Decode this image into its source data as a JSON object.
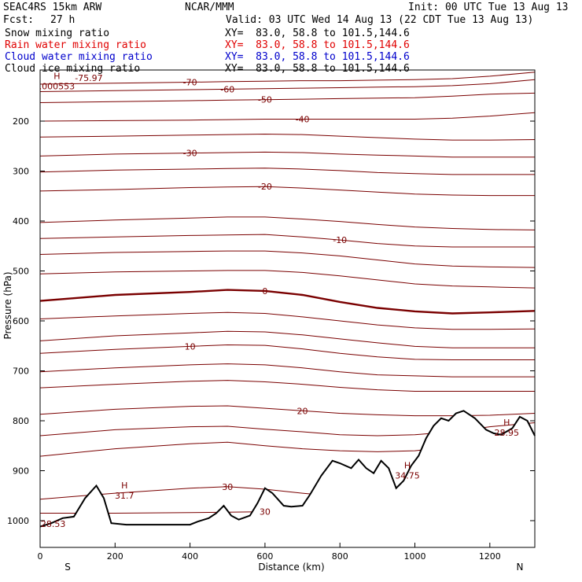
{
  "header": {
    "model": "SEAC4RS 15km ARW",
    "org": "NCAR/MMM",
    "init": "Init: 00 UTC Tue 13 Aug 13",
    "fcst_label": "Fcst:",
    "fcst_value": "27 h",
    "valid": "Valid: 03 UTC Wed 14 Aug 13 (22 CDT Tue 13 Aug 13)"
  },
  "fields": [
    {
      "name": "Snow mixing ratio",
      "xy": "XY=  83.0, 58.8 to 101.5,144.6",
      "color": "#000000"
    },
    {
      "name": "Rain water mixing ratio",
      "xy": "XY=  83.0, 58.8 to 101.5,144.6",
      "color": "#e00000"
    },
    {
      "name": "Cloud water mixing ratio",
      "xy": "XY=  83.0, 58.8 to 101.5,144.6",
      "color": "#0000cc"
    },
    {
      "name": "Cloud ice mixing ratio",
      "xy": "XY=  83.0, 58.8 to 101.5,144.6",
      "color": "#000000"
    }
  ],
  "chart_data": {
    "type": "line",
    "xlabel": "Distance (km)",
    "ylabel": "Pressure (hPa)",
    "xlim": [
      0,
      1320
    ],
    "ylim": [
      1025,
      100
    ],
    "x_ticks": [
      "0",
      "200",
      "400",
      "600",
      "800",
      "1000",
      "1200"
    ],
    "y_ticks": [
      "200",
      "300",
      "400",
      "500",
      "600",
      "700",
      "800",
      "900",
      "1000"
    ],
    "x_end_labels": {
      "left": "S",
      "right": "N"
    },
    "colors": {
      "isotherm": "#7a0000",
      "terrain": "#000000"
    },
    "isotherm_x": [
      0,
      200,
      400,
      500,
      600,
      700,
      800,
      900,
      1000,
      1100,
      1200,
      1320
    ],
    "isotherms": [
      {
        "label": "-70",
        "p": [
          126,
          124,
          122,
          121,
          120,
          119,
          119,
          118,
          117,
          115,
          110,
          102
        ]
      },
      {
        "label": "-60",
        "p": [
          141,
          139,
          137,
          136,
          135,
          134,
          133,
          132,
          131,
          129,
          125,
          117
        ]
      },
      {
        "label": "-50",
        "p": [
          163,
          161,
          159,
          158,
          157,
          156,
          155,
          154,
          153,
          150,
          146,
          144
        ]
      },
      {
        "label": "-40",
        "p": [
          200,
          199,
          198,
          197,
          196,
          196,
          196,
          196,
          196,
          194,
          190,
          183
        ]
      },
      {
        "label": "",
        "p": [
          232,
          230,
          228,
          227,
          226,
          227,
          230,
          233,
          236,
          238,
          238,
          237
        ]
      },
      {
        "label": "-30",
        "p": [
          270,
          266,
          264,
          263,
          262,
          263,
          266,
          268,
          270,
          272,
          272,
          272
        ]
      },
      {
        "label": "",
        "p": [
          302,
          298,
          296,
          295,
          294,
          296,
          299,
          303,
          305,
          307,
          307,
          307
        ]
      },
      {
        "label": "-20",
        "p": [
          340,
          337,
          333,
          332,
          331,
          334,
          338,
          342,
          346,
          348,
          349,
          349
        ]
      },
      {
        "label": "",
        "p": [
          403,
          398,
          394,
          392,
          392,
          396,
          401,
          407,
          412,
          415,
          417,
          418
        ]
      },
      {
        "label": "-10",
        "p": [
          435,
          432,
          429,
          428,
          427,
          432,
          438,
          445,
          450,
          452,
          452,
          452
        ]
      },
      {
        "label": "",
        "p": [
          467,
          463,
          461,
          460,
          460,
          464,
          470,
          478,
          486,
          490,
          492,
          493
        ]
      },
      {
        "label": "",
        "p": [
          506,
          502,
          500,
          499,
          499,
          503,
          510,
          518,
          526,
          530,
          532,
          534
        ]
      },
      {
        "label": "0",
        "p": [
          560,
          548,
          542,
          538,
          540,
          548,
          562,
          574,
          581,
          585,
          583,
          580
        ]
      },
      {
        "label": "",
        "p": [
          596,
          590,
          585,
          583,
          585,
          592,
          600,
          608,
          614,
          617,
          617,
          616
        ]
      },
      {
        "label": "",
        "p": [
          640,
          630,
          624,
          621,
          622,
          628,
          636,
          644,
          651,
          654,
          654,
          654
        ]
      },
      {
        "label": "10",
        "p": [
          665,
          657,
          651,
          648,
          649,
          656,
          665,
          672,
          677,
          678,
          678,
          678
        ]
      },
      {
        "label": "",
        "p": [
          702,
          694,
          688,
          686,
          688,
          694,
          702,
          708,
          710,
          712,
          712,
          712
        ]
      },
      {
        "label": "",
        "p": [
          734,
          727,
          721,
          719,
          722,
          727,
          733,
          738,
          741,
          741,
          741,
          741
        ]
      },
      {
        "label": "20",
        "p": [
          787,
          777,
          771,
          770,
          775,
          780,
          785,
          788,
          790,
          790,
          789,
          785
        ]
      },
      {
        "label": "",
        "p": [
          830,
          818,
          812,
          811,
          817,
          822,
          828,
          830,
          828,
          822,
          812,
          804
        ]
      },
      {
        "label": "",
        "p": [
          871,
          856,
          846,
          843,
          850,
          856,
          860,
          862,
          860,
          852,
          842,
          836
        ]
      },
      {
        "label": "30",
        "p": [
          957,
          945,
          935,
          932,
          937,
          945,
          952,
          958,
          963,
          966,
          968,
          970
        ]
      },
      {
        "label": "30",
        "p": [
          985,
          985,
          984,
          983,
          982,
          980,
          978,
          976,
          974,
          972,
          970,
          968
        ]
      }
    ],
    "terrain": {
      "x": [
        0,
        30,
        60,
        90,
        120,
        150,
        170,
        190,
        230,
        300,
        350,
        400,
        420,
        450,
        470,
        490,
        510,
        530,
        560,
        580,
        600,
        620,
        650,
        670,
        700,
        720,
        750,
        780,
        800,
        830,
        850,
        870,
        890,
        910,
        930,
        950,
        970,
        990,
        1010,
        1030,
        1050,
        1070,
        1090,
        1110,
        1130,
        1160,
        1190,
        1210,
        1230,
        1260,
        1280,
        1300,
        1320
      ],
      "p": [
        1012,
        1005,
        995,
        992,
        955,
        930,
        955,
        1005,
        1008,
        1008,
        1008,
        1008,
        1002,
        995,
        985,
        970,
        990,
        998,
        990,
        965,
        935,
        945,
        970,
        972,
        970,
        948,
        910,
        880,
        885,
        895,
        878,
        895,
        905,
        880,
        895,
        935,
        920,
        890,
        870,
        835,
        810,
        795,
        800,
        785,
        780,
        795,
        818,
        825,
        828,
        815,
        792,
        800,
        830
      ]
    },
    "local_maxima": [
      {
        "label": "H",
        "value": ".000553",
        "x": 45,
        "p": 128
      },
      {
        "label": "H",
        "value": "31.7",
        "x": 225,
        "p": 948
      },
      {
        "label": "H",
        "value": "34.75",
        "x": 980,
        "p": 908
      },
      {
        "label": "H",
        "value": "28.95",
        "x": 1245,
        "p": 822
      }
    ],
    "extra_labels": [
      {
        "text": "-75.97",
        "x": 130,
        "p": 113
      },
      {
        "text": "28.53",
        "x": 35,
        "p": 1006
      }
    ]
  }
}
